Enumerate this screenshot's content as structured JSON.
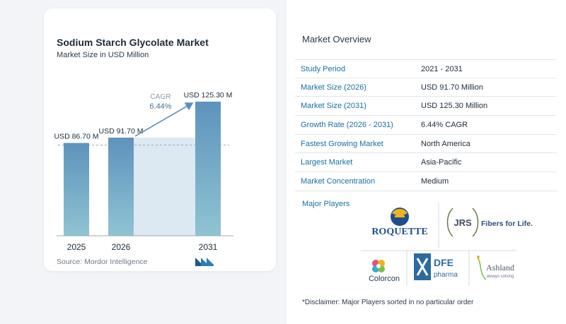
{
  "chart": {
    "title": "Sodium Starch Glycolate Market",
    "subtitle": "Market Size in USD Million",
    "source": "Source: Mordor Intelligence",
    "cagr_label": "CAGR",
    "cagr_value": "6.44%"
  },
  "chart_data": {
    "type": "bar",
    "categories": [
      "2025",
      "2026",
      "2031"
    ],
    "values": [
      86.7,
      91.7,
      125.3
    ],
    "data_labels": [
      "USD 86.70 M",
      "USD 91.70 M",
      "USD 125.30 M"
    ],
    "title": "Sodium Starch Glycolate Market",
    "subtitle": "Market Size in USD Million",
    "xlabel": "",
    "ylabel": "",
    "ylim": [
      0,
      130
    ],
    "annotation": {
      "label": "CAGR",
      "value": "6.44%"
    },
    "colors": {
      "bar_top": "#5e93bd",
      "bar_bottom": "#8fc4d2",
      "arrow": "#5b8fc1",
      "shade": "#dde9f2"
    }
  },
  "overview": {
    "title": "Market Overview",
    "rows": [
      {
        "label": "Study Period",
        "value": "2021 - 2031"
      },
      {
        "label": "Market Size (2026)",
        "value": "USD 91.70 Million"
      },
      {
        "label": "Market Size (2031)",
        "value": "USD 125.30 Million"
      },
      {
        "label": "Growth Rate (2026 - 2031)",
        "value": "6.44% CAGR"
      },
      {
        "label": "Fastest Growing Market",
        "value": "North America"
      },
      {
        "label": "Largest Market",
        "value": "Asia-Pacific"
      },
      {
        "label": "Market Concentration",
        "value": "Medium"
      }
    ]
  },
  "players": {
    "title": "Major Players",
    "logos": {
      "roquette": "ROQUETTE",
      "jrs": "JRS",
      "jrs_tagline": "Fibers for Life.",
      "dfe_name": "DFE",
      "dfe_sub": "pharma",
      "colorcon": "Colorcon",
      "ashland": "Ashland",
      "ashland_tag": "always solving"
    }
  },
  "disclaimer": "*Disclaimer: Major Players sorted in no particular order",
  "colors": {
    "accent": "#1a6fa3",
    "background": "#f2f4f7"
  }
}
